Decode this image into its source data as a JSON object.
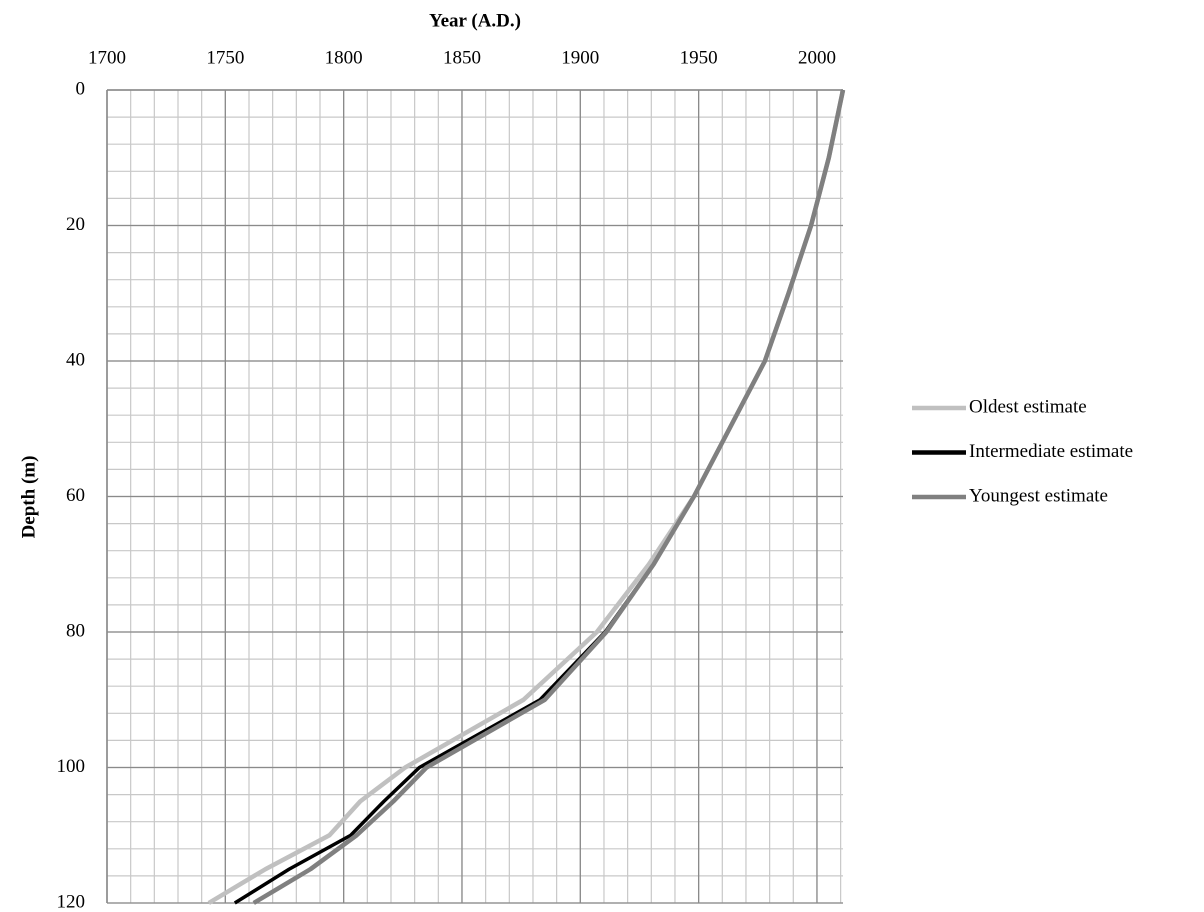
{
  "chart_data": {
    "type": "line",
    "x_label": "Year (A.D.)",
    "y_label": "Depth (m)",
    "xlim": [
      1700,
      2011
    ],
    "xticks": [
      1700,
      1750,
      1800,
      1850,
      1900,
      1950,
      2000
    ],
    "ylim": [
      0,
      120
    ],
    "yticks": [
      0,
      20,
      40,
      60,
      80,
      100,
      120
    ],
    "y_inverted": true,
    "x_axis_position": "top",
    "grid": true,
    "legend_position": "right",
    "series": [
      {
        "name": "Oldest estimate",
        "color": "#c0c0c0",
        "x": [
          2011,
          2005,
          1997.5,
          1988,
          1978,
          1963,
          1948,
          1929,
          1907,
          1876,
          1826,
          1807,
          1794,
          1767,
          1743
        ],
        "values": [
          0,
          10,
          20,
          30,
          40,
          50,
          60,
          70,
          80,
          90,
          100,
          105,
          110,
          115,
          120
        ]
      },
      {
        "name": "Intermediate estimate",
        "color": "#000000",
        "x": [
          2011,
          2005,
          1997.5,
          1988,
          1978,
          1963,
          1948,
          1931,
          1910.5,
          1883,
          1832,
          1817,
          1803,
          1777,
          1754
        ],
        "values": [
          0,
          10,
          20,
          30,
          40,
          50,
          60,
          70,
          80,
          90,
          100,
          105,
          110,
          115,
          120
        ]
      },
      {
        "name": "Youngest estimate",
        "color": "#808080",
        "x": [
          2011,
          2005,
          1997.5,
          1988,
          1978,
          1963,
          1948,
          1931,
          1911,
          1885,
          1835,
          1821,
          1805.5,
          1786,
          1762
        ],
        "values": [
          0,
          10,
          20,
          30,
          40,
          50,
          60,
          70,
          80,
          90,
          100,
          105,
          110,
          115,
          120
        ]
      }
    ]
  }
}
